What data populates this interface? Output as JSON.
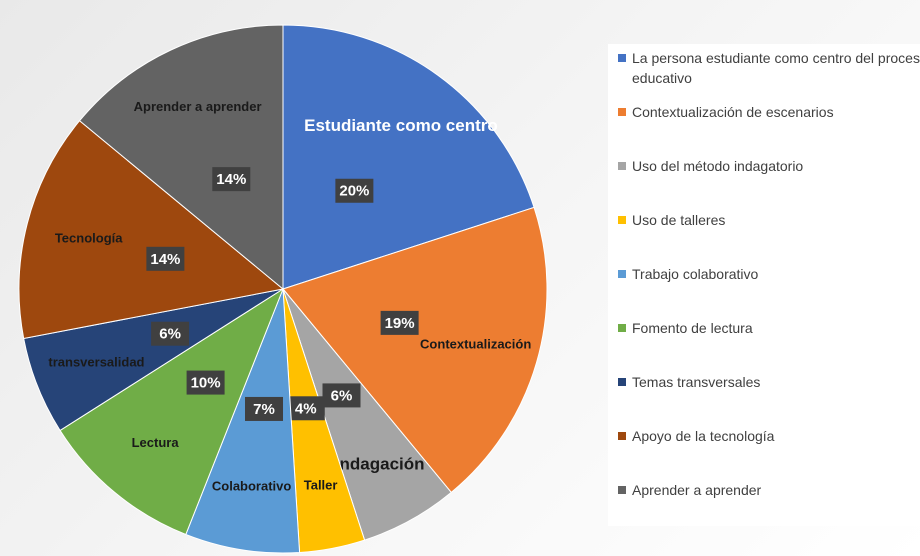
{
  "chart_data": {
    "type": "pie",
    "categories": [
      "La persona estudiante como centro del proceso educativo",
      "Contextualización de escenarios",
      "Uso del método indagatorio",
      "Uso de talleres",
      "Trabajo colaborativo",
      "Fomento de lectura",
      "Temas transversales",
      "Apoyo de la tecnología",
      "Aprender a aprender"
    ],
    "slice_labels": [
      "Estudiante como centro",
      "Contextualización",
      "indagación",
      "Taller",
      "Colaborativo",
      "Lectura",
      "transversalidad",
      "Tecnología",
      "Aprender a aprender"
    ],
    "values": [
      20,
      19,
      6,
      4,
      7,
      10,
      6,
      14,
      14
    ],
    "value_labels": [
      "20%",
      "19%",
      "6%",
      "4%",
      "7%",
      "10%",
      "6%",
      "14%",
      "14%"
    ],
    "colors": [
      "#4472c4",
      "#ed7d31",
      "#a5a5a5",
      "#ffc000",
      "#5b9bd5",
      "#70ad47",
      "#264478",
      "#9e480e",
      "#636363"
    ],
    "legend": "right"
  }
}
